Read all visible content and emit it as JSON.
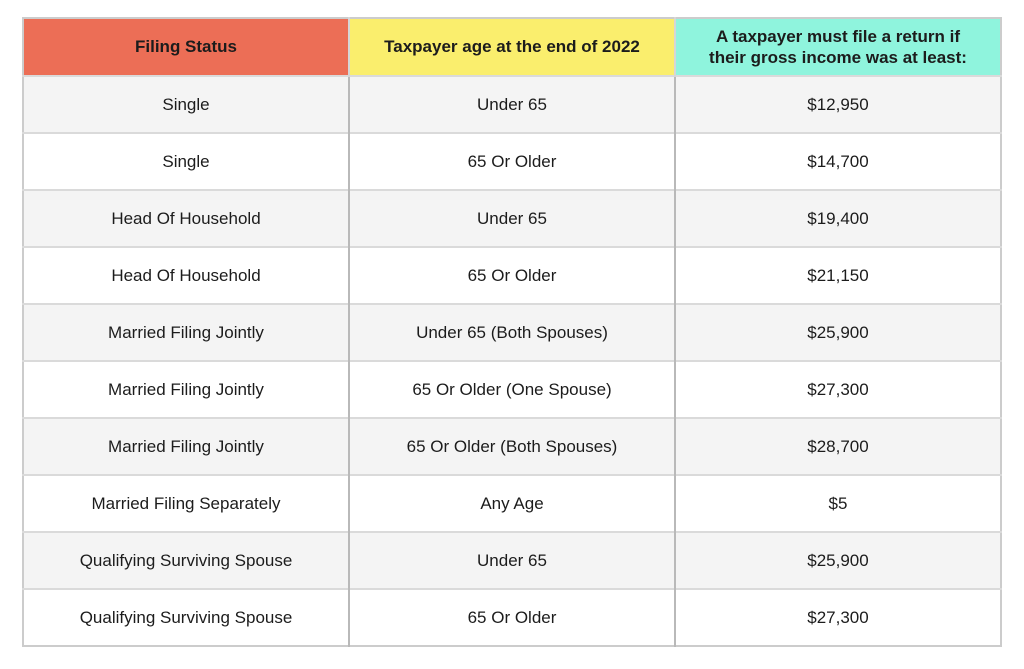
{
  "colors": {
    "header_filing_status_bg": "#EC6E56",
    "header_age_bg": "#FAEE6D",
    "header_income_bg": "#8FF4DD",
    "row_stripe_bg": "#F4F4F4",
    "row_plain_bg": "#FFFFFF",
    "text": "#1C1C1C",
    "border_vertical": "#B9B9B9",
    "border_horizontal": "#DADADA",
    "border_outer": "#CCCCCC"
  },
  "table": {
    "headers": [
      {
        "name": "filing-status",
        "label": "Filing Status",
        "bg": "#EC6E56"
      },
      {
        "name": "taxpayer-age",
        "label": "Taxpayer age at the end of 2022",
        "bg": "#FAEE6D"
      },
      {
        "name": "gross-income-threshold",
        "label": "A taxpayer must file a return if their gross income was at least:",
        "bg": "#8FF4DD"
      }
    ],
    "rows": [
      [
        "Single",
        "Under 65",
        "$12,950"
      ],
      [
        "Single",
        "65 Or Older",
        "$14,700"
      ],
      [
        "Head Of Household",
        "Under 65",
        "$19,400"
      ],
      [
        "Head Of Household",
        "65 Or Older",
        "$21,150"
      ],
      [
        "Married Filing Jointly",
        "Under 65 (Both Spouses)",
        "$25,900"
      ],
      [
        "Married Filing Jointly",
        "65 Or Older (One Spouse)",
        "$27,300"
      ],
      [
        "Married Filing Jointly",
        "65 Or Older (Both Spouses)",
        "$28,700"
      ],
      [
        "Married Filing Separately",
        "Any Age",
        "$5"
      ],
      [
        "Qualifying Surviving Spouse",
        "Under 65",
        "$25,900"
      ],
      [
        "Qualifying Surviving Spouse",
        "65 Or Older",
        "$27,300"
      ]
    ]
  },
  "chart_data": {
    "type": "table",
    "title": "2022 federal income tax filing thresholds by filing status and age",
    "columns": [
      "Filing Status",
      "Taxpayer age at the end of 2022",
      "A taxpayer must file a return if their gross income was at least:"
    ],
    "rows": [
      [
        "Single",
        "Under 65",
        "$12,950"
      ],
      [
        "Single",
        "65 Or Older",
        "$14,700"
      ],
      [
        "Head Of Household",
        "Under 65",
        "$19,400"
      ],
      [
        "Head Of Household",
        "65 Or Older",
        "$21,150"
      ],
      [
        "Married Filing Jointly",
        "Under 65 (Both Spouses)",
        "$25,900"
      ],
      [
        "Married Filing Jointly",
        "65 Or Older (One Spouse)",
        "$27,300"
      ],
      [
        "Married Filing Jointly",
        "65 Or Older (Both Spouses)",
        "$28,700"
      ],
      [
        "Married Filing Separately",
        "Any Age",
        "$5"
      ],
      [
        "Qualifying Surviving Spouse",
        "Under 65",
        "$25,900"
      ],
      [
        "Qualifying Surviving Spouse",
        "65 Or Older",
        "$27,300"
      ]
    ],
    "values_numeric_usd": [
      12950,
      14700,
      19400,
      21150,
      25900,
      27300,
      28700,
      5,
      25900,
      27300
    ],
    "header_colors": [
      "#EC6E56",
      "#FAEE6D",
      "#8FF4DD"
    ],
    "row_striping": "odd rows #F4F4F4, even rows #FFFFFF"
  }
}
